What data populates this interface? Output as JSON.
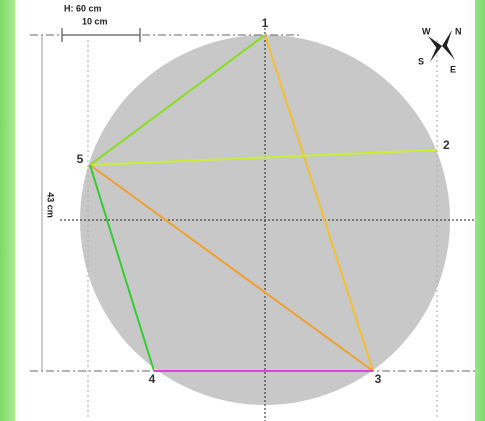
{
  "dimensions": {
    "height": "H: 60 cm",
    "scale": "10 cm",
    "vertical": "43 cm"
  },
  "points": [
    "1",
    "2",
    "3",
    "4",
    "5"
  ],
  "compass": [
    "W",
    "N",
    "S",
    "E"
  ]
}
